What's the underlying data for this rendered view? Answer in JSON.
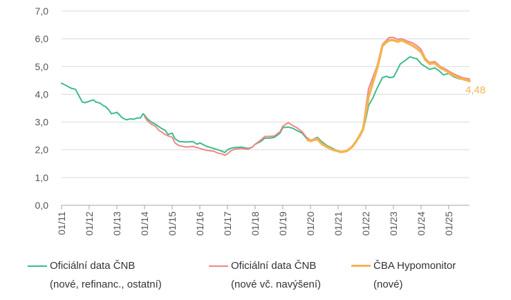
{
  "chart_data": {
    "type": "line",
    "title": "",
    "xlabel": "",
    "ylabel": "",
    "ylim": [
      0,
      7
    ],
    "yticks": [
      "0,0",
      "1,0",
      "2,0",
      "3,0",
      "4,0",
      "5,0",
      "6,0",
      "7,0"
    ],
    "xticks": [
      "01/11",
      "01/12",
      "01/13",
      "01/14",
      "01/15",
      "01/16",
      "01/17",
      "01/18",
      "01/19",
      "01/20",
      "01/21",
      "01/22",
      "01/23",
      "01/24",
      "01/25"
    ],
    "x_range": [
      2011.0,
      2025.75
    ],
    "grid": "horizontal",
    "legend_position": "bottom",
    "end_label": "4,48",
    "series": [
      {
        "name": "Oficiální data ČNB (nové, refinanc., ostatní)",
        "legend_lines": [
          "Oficiální data ČNB",
          "(nové, refinanc., ostatní)"
        ],
        "color": "#3cba8c",
        "x": [
          2011.0,
          2011.1,
          2011.2,
          2011.35,
          2011.5,
          2011.6,
          2011.75,
          2011.85,
          2012.0,
          2012.15,
          2012.25,
          2012.4,
          2012.5,
          2012.6,
          2012.7,
          2012.8,
          2012.9,
          2013.0,
          2013.1,
          2013.2,
          2013.35,
          2013.5,
          2013.6,
          2013.75,
          2013.85,
          2013.95,
          2014.0,
          2014.1,
          2014.25,
          2014.4,
          2014.5,
          2014.6,
          2014.75,
          2014.85,
          2015.0,
          2015.1,
          2015.25,
          2015.5,
          2015.75,
          2015.9,
          2016.0,
          2016.1,
          2016.25,
          2016.5,
          2016.65,
          2016.8,
          2016.9,
          2017.0,
          2017.1,
          2017.25,
          2017.5,
          2017.75,
          2017.9,
          2018.0,
          2018.2,
          2018.35,
          2018.5,
          2018.7,
          2018.9,
          2019.0,
          2019.2,
          2019.35,
          2019.5,
          2019.7,
          2019.85,
          2020.0,
          2020.1,
          2020.25,
          2020.4,
          2020.6,
          2020.8,
          2021.0,
          2021.1,
          2021.3,
          2021.5,
          2021.65,
          2021.8,
          2021.9,
          2022.0,
          2022.1,
          2022.25,
          2022.4,
          2022.5,
          2022.6,
          2022.75,
          2022.85,
          2023.0,
          2023.1,
          2023.25,
          2023.4,
          2023.5,
          2023.6,
          2023.75,
          2023.85,
          2024.0,
          2024.15,
          2024.3,
          2024.5,
          2024.65,
          2024.8,
          2025.0,
          2025.2,
          2025.4,
          2025.6,
          2025.75
        ],
        "values": [
          4.4,
          4.35,
          4.3,
          4.22,
          4.18,
          4.0,
          3.72,
          3.7,
          3.75,
          3.8,
          3.72,
          3.68,
          3.6,
          3.55,
          3.45,
          3.3,
          3.32,
          3.35,
          3.25,
          3.15,
          3.08,
          3.12,
          3.1,
          3.15,
          3.15,
          3.3,
          3.25,
          3.12,
          3.0,
          2.92,
          2.85,
          2.78,
          2.7,
          2.55,
          2.6,
          2.4,
          2.3,
          2.28,
          2.3,
          2.2,
          2.25,
          2.2,
          2.12,
          2.05,
          2.0,
          1.95,
          1.9,
          2.0,
          2.05,
          2.08,
          2.1,
          2.05,
          2.1,
          2.2,
          2.3,
          2.42,
          2.42,
          2.45,
          2.6,
          2.8,
          2.82,
          2.78,
          2.7,
          2.6,
          2.42,
          2.3,
          2.38,
          2.45,
          2.3,
          2.15,
          2.05,
          1.95,
          1.92,
          1.95,
          2.1,
          2.3,
          2.5,
          2.7,
          3.1,
          3.6,
          3.85,
          4.2,
          4.4,
          4.6,
          4.65,
          4.6,
          4.62,
          4.8,
          5.1,
          5.2,
          5.28,
          5.35,
          5.3,
          5.28,
          5.1,
          5.0,
          4.9,
          4.95,
          4.85,
          4.7,
          4.75,
          4.62,
          4.55,
          4.55,
          4.48
        ]
      },
      {
        "name": "Oficiální data ČNB (nové vč. navýšení)",
        "legend_lines": [
          "Oficiální data ČNB",
          "(nové vč. navýšení)"
        ],
        "color": "#ef8587",
        "x": [
          2014.0,
          2014.1,
          2014.25,
          2014.4,
          2014.5,
          2014.6,
          2014.75,
          2014.85,
          2015.0,
          2015.1,
          2015.25,
          2015.5,
          2015.75,
          2015.9,
          2016.0,
          2016.1,
          2016.25,
          2016.5,
          2016.65,
          2016.8,
          2016.9,
          2017.0,
          2017.1,
          2017.25,
          2017.5,
          2017.75,
          2017.9,
          2018.0,
          2018.2,
          2018.35,
          2018.5,
          2018.7,
          2018.9,
          2019.0,
          2019.2,
          2019.35,
          2019.5,
          2019.7,
          2019.85,
          2020.0,
          2020.1,
          2020.25,
          2020.4,
          2020.6,
          2020.8,
          2021.0,
          2021.1,
          2021.3,
          2021.5,
          2021.65,
          2021.8,
          2021.9,
          2022.0,
          2022.1,
          2022.25,
          2022.4,
          2022.5,
          2022.6,
          2022.75,
          2022.85,
          2023.0,
          2023.15,
          2023.3,
          2023.5,
          2023.7,
          2023.85,
          2024.0,
          2024.15,
          2024.3,
          2024.5,
          2024.7,
          2024.9,
          2025.1,
          2025.3,
          2025.5,
          2025.75
        ],
        "values": [
          3.2,
          3.05,
          2.92,
          2.85,
          2.72,
          2.65,
          2.55,
          2.5,
          2.45,
          2.25,
          2.15,
          2.1,
          2.12,
          2.08,
          2.05,
          2.02,
          1.98,
          1.95,
          1.88,
          1.85,
          1.8,
          1.85,
          1.95,
          2.02,
          2.05,
          2.02,
          2.1,
          2.2,
          2.35,
          2.48,
          2.48,
          2.5,
          2.65,
          2.85,
          2.98,
          2.88,
          2.8,
          2.65,
          2.45,
          2.35,
          2.38,
          2.42,
          2.25,
          2.12,
          2.02,
          1.95,
          1.92,
          1.95,
          2.12,
          2.32,
          2.55,
          2.8,
          3.5,
          4.2,
          4.6,
          5.0,
          5.4,
          5.8,
          5.95,
          6.05,
          6.05,
          5.98,
          6.0,
          5.92,
          5.85,
          5.75,
          5.62,
          5.3,
          5.15,
          5.18,
          5.0,
          4.9,
          4.78,
          4.68,
          4.6,
          4.55
        ]
      },
      {
        "name": "ČBA Hypomonitor (nové)",
        "legend_lines": [
          "ČBA Hypomonitor",
          "(nové)"
        ],
        "color": "#f4b451",
        "x": [
          2019.9,
          2020.0,
          2020.1,
          2020.25,
          2020.4,
          2020.6,
          2020.8,
          2021.0,
          2021.1,
          2021.3,
          2021.5,
          2021.65,
          2021.8,
          2021.9,
          2022.0,
          2022.1,
          2022.25,
          2022.4,
          2022.5,
          2022.6,
          2022.75,
          2022.85,
          2023.0,
          2023.15,
          2023.3,
          2023.5,
          2023.7,
          2023.85,
          2024.0,
          2024.15,
          2024.3,
          2024.5,
          2024.7,
          2024.9,
          2025.1,
          2025.3,
          2025.5,
          2025.75
        ],
        "values": [
          2.35,
          2.32,
          2.35,
          2.38,
          2.22,
          2.1,
          2.0,
          1.95,
          1.92,
          1.95,
          2.1,
          2.3,
          2.55,
          2.75,
          3.3,
          3.9,
          4.4,
          4.9,
          5.3,
          5.75,
          5.88,
          5.95,
          5.95,
          5.9,
          5.95,
          5.85,
          5.75,
          5.65,
          5.52,
          5.25,
          5.1,
          5.12,
          4.95,
          4.85,
          4.72,
          4.62,
          4.55,
          4.48
        ]
      }
    ]
  }
}
